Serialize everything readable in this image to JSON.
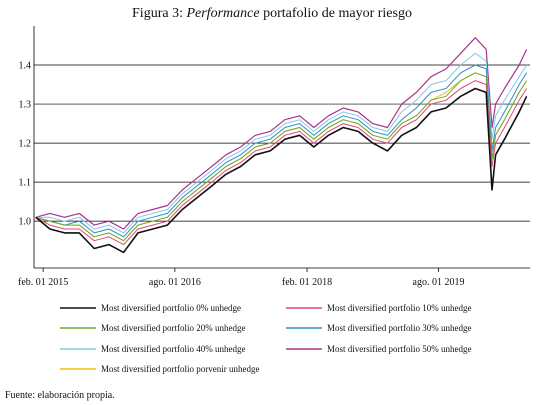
{
  "chart_data": {
    "type": "line",
    "title_prefix": "Figura 3: ",
    "title_italic": "Performance",
    "title_suffix": " portafolio de mayor riesgo",
    "source": "Fuente: elaboración propia.",
    "ylim": [
      0.88,
      1.5
    ],
    "yticks": [
      1.0,
      1.1,
      1.2,
      1.3,
      1.4
    ],
    "ytick_labels": [
      "1.0",
      "1.1",
      "1.2",
      "1.3",
      "1.4"
    ],
    "xlim": [
      "2014-12-25",
      "2020-08-15"
    ],
    "xticks": [
      "2015-02-01",
      "2016-08-01",
      "2018-02-01",
      "2019-08-01"
    ],
    "xtick_labels": [
      "feb. 01 2015",
      "ago. 01 2016",
      "feb. 01 2018",
      "ago. 01 2019"
    ],
    "grid": "horizontal",
    "legend_position": "bottom",
    "x": [
      "2015-01-01",
      "2015-03-01",
      "2015-05-01",
      "2015-07-01",
      "2015-09-01",
      "2015-11-01",
      "2016-01-01",
      "2016-03-01",
      "2016-05-01",
      "2016-07-01",
      "2016-09-01",
      "2016-11-01",
      "2017-01-01",
      "2017-03-01",
      "2017-05-01",
      "2017-07-01",
      "2017-09-01",
      "2017-11-01",
      "2018-01-01",
      "2018-03-01",
      "2018-05-01",
      "2018-07-01",
      "2018-09-01",
      "2018-11-01",
      "2019-01-01",
      "2019-03-01",
      "2019-05-01",
      "2019-07-01",
      "2019-09-01",
      "2019-11-01",
      "2020-01-01",
      "2020-02-15",
      "2020-03-10",
      "2020-03-25",
      "2020-05-01",
      "2020-07-01",
      "2020-08-01"
    ],
    "series": [
      {
        "name": "Most diversified portfolio 0% unhedge",
        "color": "#111111",
        "width": 1.6,
        "values": [
          1.01,
          0.98,
          0.97,
          0.97,
          0.93,
          0.94,
          0.92,
          0.97,
          0.98,
          0.99,
          1.03,
          1.06,
          1.09,
          1.12,
          1.14,
          1.17,
          1.18,
          1.21,
          1.22,
          1.19,
          1.22,
          1.24,
          1.23,
          1.2,
          1.18,
          1.22,
          1.24,
          1.28,
          1.29,
          1.32,
          1.34,
          1.33,
          1.08,
          1.17,
          1.21,
          1.28,
          1.32
        ]
      },
      {
        "name": "Most diversified portfolio 10% unhedge",
        "color": "#e0467e",
        "width": 1.0,
        "values": [
          1.01,
          0.99,
          0.98,
          0.98,
          0.95,
          0.96,
          0.94,
          0.98,
          0.99,
          1.0,
          1.04,
          1.07,
          1.1,
          1.13,
          1.15,
          1.18,
          1.19,
          1.22,
          1.23,
          1.2,
          1.23,
          1.25,
          1.24,
          1.21,
          1.2,
          1.24,
          1.26,
          1.3,
          1.31,
          1.34,
          1.36,
          1.35,
          1.14,
          1.2,
          1.24,
          1.31,
          1.34
        ]
      },
      {
        "name": "Most diversified portfolio 20% unhedge",
        "color": "#6aaa2e",
        "width": 1.0,
        "values": [
          1.01,
          1.0,
          0.99,
          0.99,
          0.96,
          0.97,
          0.95,
          0.99,
          1.0,
          1.01,
          1.05,
          1.08,
          1.11,
          1.14,
          1.16,
          1.19,
          1.2,
          1.23,
          1.24,
          1.21,
          1.24,
          1.26,
          1.25,
          1.22,
          1.21,
          1.25,
          1.27,
          1.31,
          1.32,
          1.36,
          1.38,
          1.37,
          1.16,
          1.22,
          1.26,
          1.33,
          1.36
        ]
      },
      {
        "name": "Most diversified portfolio 30% unhedge",
        "color": "#2f8fc7",
        "width": 1.0,
        "values": [
          1.01,
          1.0,
          0.99,
          1.0,
          0.97,
          0.98,
          0.96,
          1.0,
          1.01,
          1.02,
          1.06,
          1.09,
          1.12,
          1.15,
          1.17,
          1.2,
          1.21,
          1.24,
          1.25,
          1.22,
          1.25,
          1.27,
          1.26,
          1.23,
          1.22,
          1.26,
          1.29,
          1.33,
          1.34,
          1.38,
          1.4,
          1.39,
          1.18,
          1.24,
          1.28,
          1.35,
          1.38
        ]
      },
      {
        "name": "Most diversified portfolio 40% unhedge",
        "color": "#7fcbe8",
        "width": 1.0,
        "values": [
          1.01,
          1.01,
          1.0,
          1.01,
          0.98,
          0.99,
          0.97,
          1.01,
          1.02,
          1.03,
          1.07,
          1.1,
          1.13,
          1.16,
          1.18,
          1.21,
          1.22,
          1.25,
          1.26,
          1.23,
          1.26,
          1.28,
          1.27,
          1.24,
          1.23,
          1.28,
          1.31,
          1.35,
          1.36,
          1.4,
          1.43,
          1.41,
          1.21,
          1.27,
          1.31,
          1.37,
          1.4
        ]
      },
      {
        "name": "Most diversified portfolio 50% unhedge",
        "color": "#a8338e",
        "width": 1.2,
        "values": [
          1.01,
          1.02,
          1.01,
          1.02,
          0.99,
          1.0,
          0.98,
          1.02,
          1.03,
          1.04,
          1.08,
          1.11,
          1.14,
          1.17,
          1.19,
          1.22,
          1.23,
          1.26,
          1.27,
          1.24,
          1.27,
          1.29,
          1.28,
          1.25,
          1.24,
          1.3,
          1.33,
          1.37,
          1.39,
          1.43,
          1.47,
          1.44,
          1.24,
          1.3,
          1.34,
          1.4,
          1.44
        ]
      },
      {
        "name": "Most diversified portfolio porvenir unhedge",
        "color": "#f2c200",
        "width": 1.0,
        "values": [
          1.01,
          1.0,
          0.99,
          0.99,
          0.96,
          0.97,
          0.95,
          0.99,
          1.0,
          1.01,
          1.05,
          1.08,
          1.11,
          1.14,
          1.16,
          1.19,
          1.2,
          1.23,
          1.24,
          1.21,
          1.24,
          1.26,
          1.25,
          1.22,
          1.21,
          1.25,
          1.27,
          1.31,
          1.33,
          1.36,
          1.38,
          1.37,
          1.16,
          1.22,
          1.26,
          1.33,
          1.36
        ]
      }
    ]
  }
}
